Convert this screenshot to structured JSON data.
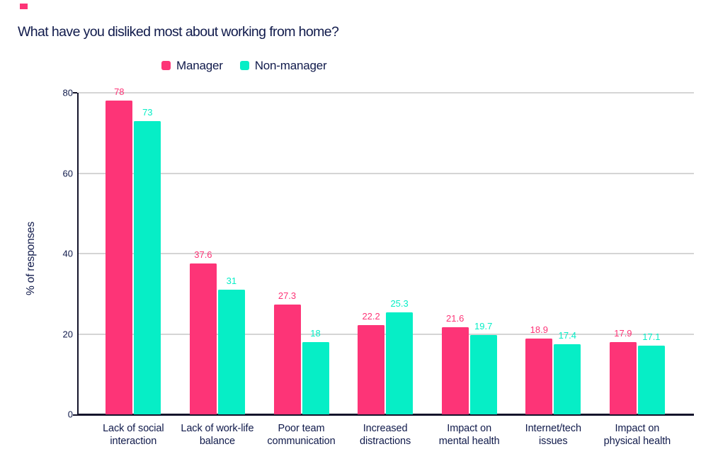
{
  "decoration": {
    "pink_mark_color": "#FD3477"
  },
  "colors": {
    "text_navy": "#101A4B",
    "axis": "#14142B",
    "gridline": "#D5D5D5",
    "background": "#FFFFFF",
    "manager_pink": "#FD3477",
    "non_manager_teal": "#06EEC6"
  },
  "chart_data": {
    "type": "bar",
    "title": "What have you disliked most about working from home?",
    "xlabel": "",
    "ylabel": "% of responses",
    "ylim": [
      0,
      80
    ],
    "yticks": [
      0,
      20,
      40,
      60,
      80
    ],
    "grid": true,
    "legend_position": "top",
    "categories": [
      "Lack of social interaction",
      "Lack of work-life balance",
      "Poor team communication",
      "Increased distractions",
      "Impact on mental health",
      "Internet/tech issues",
      "Impact on physical health"
    ],
    "category_lines": [
      [
        "Lack of social",
        "interaction"
      ],
      [
        "Lack of work-life",
        "balance"
      ],
      [
        "Poor team",
        "communication"
      ],
      [
        "Increased",
        "distractions"
      ],
      [
        "Impact on",
        "mental health"
      ],
      [
        "Internet/tech",
        "issues"
      ],
      [
        "Impact on",
        "physical health"
      ]
    ],
    "series": [
      {
        "name": "Manager",
        "color": "#FD3477",
        "values": [
          78,
          37.6,
          27.3,
          22.2,
          21.6,
          18.9,
          17.9
        ]
      },
      {
        "name": "Non-manager",
        "color": "#06EEC6",
        "values": [
          73,
          31,
          18,
          25.3,
          19.7,
          17.4,
          17.1
        ]
      }
    ]
  }
}
